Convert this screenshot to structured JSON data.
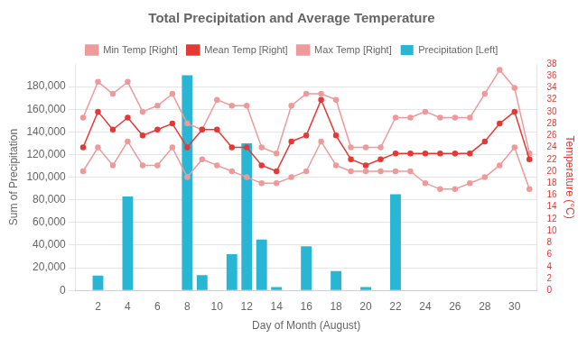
{
  "chart_data": {
    "type": "bar",
    "title": "Total Precipitation and Average Temperature",
    "xlabel": "Day of Month (August)",
    "ylabel": "Sum of Precipitation",
    "y2label": "Temperature (°C)",
    "x": [
      1,
      2,
      3,
      4,
      5,
      6,
      7,
      8,
      9,
      10,
      11,
      12,
      13,
      14,
      15,
      16,
      17,
      18,
      19,
      20,
      21,
      22,
      23,
      24,
      25,
      26,
      27,
      28,
      29,
      30,
      31
    ],
    "xlim": [
      0.5,
      31.5
    ],
    "xticks": [
      2,
      4,
      6,
      8,
      10,
      12,
      14,
      16,
      18,
      20,
      22,
      24,
      26,
      28,
      30
    ],
    "ylim": [
      0,
      200000
    ],
    "yticks": [
      0,
      {
        "value": 20000,
        "label": "20,000"
      },
      {
        "value": 40000,
        "label": "40,000"
      },
      {
        "value": 60000,
        "label": "60,000"
      },
      {
        "value": 80000,
        "label": "80,000"
      },
      {
        "value": 100000,
        "label": "100,000"
      },
      {
        "value": 120000,
        "label": "120,000"
      },
      {
        "value": 140000,
        "label": "140,000"
      },
      {
        "value": 160000,
        "label": "160,000"
      },
      {
        "value": 180000,
        "label": "180,000"
      }
    ],
    "y2lim": [
      0,
      38
    ],
    "y2ticks": [
      0,
      2,
      4,
      6,
      8,
      10,
      12,
      14,
      16,
      18,
      20,
      22,
      24,
      26,
      28,
      30,
      32,
      34,
      36,
      38
    ],
    "grid": true,
    "legend": "top",
    "series": [
      {
        "name": "Precipitation [Left]",
        "type": "bar",
        "color": "#29b6d5",
        "values": [
          0,
          13000,
          0,
          83000,
          0,
          0,
          0,
          190000,
          13500,
          0,
          32000,
          130000,
          45000,
          3000,
          0,
          39000,
          0,
          17000,
          0,
          3000,
          0,
          85000,
          0,
          0,
          0,
          0,
          0,
          0,
          0,
          0,
          0
        ]
      },
      {
        "name": "Min Temp [Right]",
        "type": "line",
        "axis": "y2",
        "color": "#ef9a9a",
        "marker": "circle",
        "values": [
          20,
          24,
          21,
          25,
          21,
          21,
          24,
          19,
          22,
          21,
          20,
          19,
          18,
          18,
          19,
          20,
          25,
          21,
          20,
          20,
          20,
          20,
          20,
          18,
          17,
          17,
          18,
          19,
          21,
          24,
          17
        ]
      },
      {
        "name": "Mean Temp [Right]",
        "type": "line",
        "axis": "y2",
        "color": "#e53935",
        "marker": "circle",
        "values": [
          24,
          30,
          27,
          29,
          26,
          27,
          28,
          24,
          27,
          27,
          24,
          24,
          21,
          20,
          25,
          26,
          32,
          26,
          22,
          21,
          22,
          23,
          23,
          23,
          23,
          23,
          23,
          25,
          28,
          30,
          22
        ]
      },
      {
        "name": "Max Temp [Right]",
        "type": "line",
        "axis": "y2",
        "color": "#ef9a9a",
        "marker": "circle",
        "values": [
          29,
          35,
          33,
          35,
          30,
          31,
          33,
          28,
          27,
          32,
          31,
          31,
          24,
          23,
          31,
          33,
          33,
          32,
          24,
          24,
          24,
          29,
          29,
          30,
          29,
          29,
          29,
          33,
          37,
          34,
          23
        ]
      }
    ]
  }
}
